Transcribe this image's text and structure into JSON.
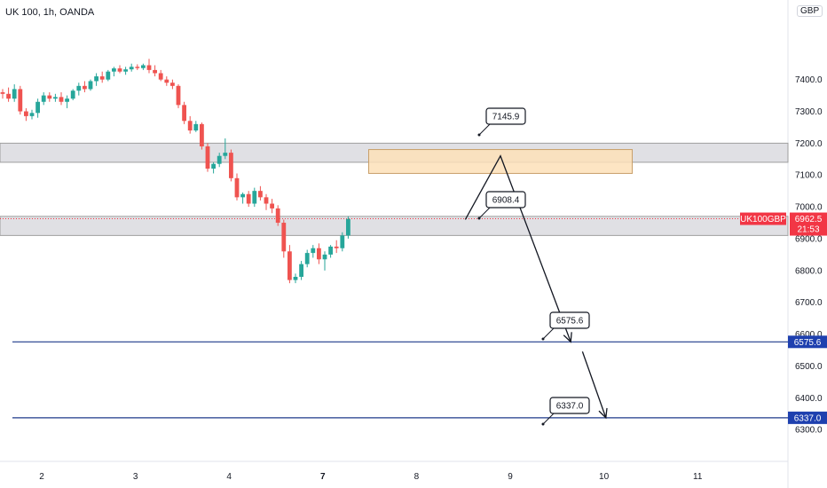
{
  "symbol_line": "UK 100, 1h, OANDA",
  "currency": "GBP",
  "colors": {
    "up": "#26a69a",
    "down": "#ef5350",
    "blue": "#1e3a8a",
    "zone": "#e0e0e4",
    "orange": "#fde0b8",
    "badge_red": "#f23645",
    "badge_blue": "#1e40af"
  },
  "chart_data": {
    "type": "candlestick",
    "title": "UK 100, 1h, OANDA",
    "y_range": [
      6200,
      7650
    ],
    "y_ticks": [
      "7400.0",
      "7300.0",
      "7200.0",
      "7100.0",
      "7000.0",
      "6900.0",
      "6800.0",
      "6700.0",
      "6600.0",
      "6500.0",
      "6400.0",
      "6300.0"
    ],
    "y_tick_values": [
      7400,
      7300,
      7200,
      7100,
      7000,
      6900,
      6800,
      6700,
      6600,
      6500,
      6400,
      6300
    ],
    "x_ticks": [
      "2",
      "3",
      "4",
      "7",
      "8",
      "9",
      "10",
      "11"
    ],
    "x_tick_index": [
      0,
      16,
      32,
      48,
      64,
      80,
      96,
      112
    ],
    "candles": [
      [
        7360,
        7370,
        7340,
        7355
      ],
      [
        7355,
        7375,
        7330,
        7340
      ],
      [
        7340,
        7385,
        7330,
        7370
      ],
      [
        7370,
        7380,
        7290,
        7300
      ],
      [
        7300,
        7310,
        7270,
        7285
      ],
      [
        7285,
        7305,
        7275,
        7295
      ],
      [
        7295,
        7340,
        7280,
        7330
      ],
      [
        7330,
        7360,
        7320,
        7350
      ],
      [
        7350,
        7360,
        7330,
        7340
      ],
      [
        7340,
        7355,
        7330,
        7345
      ],
      [
        7345,
        7360,
        7320,
        7330
      ],
      [
        7330,
        7350,
        7310,
        7340
      ],
      [
        7340,
        7370,
        7335,
        7365
      ],
      [
        7365,
        7390,
        7350,
        7380
      ],
      [
        7380,
        7395,
        7360,
        7370
      ],
      [
        7370,
        7400,
        7365,
        7395
      ],
      [
        7395,
        7420,
        7380,
        7410
      ],
      [
        7410,
        7425,
        7390,
        7400
      ],
      [
        7400,
        7430,
        7395,
        7425
      ],
      [
        7425,
        7440,
        7410,
        7435
      ],
      [
        7435,
        7445,
        7420,
        7425
      ],
      [
        7425,
        7440,
        7415,
        7432
      ],
      [
        7432,
        7450,
        7425,
        7440
      ],
      [
        7440,
        7448,
        7430,
        7436
      ],
      [
        7436,
        7450,
        7430,
        7445
      ],
      [
        7445,
        7465,
        7420,
        7430
      ],
      [
        7430,
        7445,
        7410,
        7420
      ],
      [
        7420,
        7430,
        7395,
        7400
      ],
      [
        7400,
        7410,
        7380,
        7390
      ],
      [
        7390,
        7400,
        7370,
        7380
      ],
      [
        7380,
        7385,
        7310,
        7320
      ],
      [
        7320,
        7330,
        7260,
        7270
      ],
      [
        7270,
        7285,
        7230,
        7240
      ],
      [
        7240,
        7270,
        7235,
        7260
      ],
      [
        7260,
        7265,
        7180,
        7190
      ],
      [
        7190,
        7200,
        7110,
        7120
      ],
      [
        7120,
        7140,
        7105,
        7135
      ],
      [
        7135,
        7170,
        7125,
        7160
      ],
      [
        7160,
        7215,
        7150,
        7170
      ],
      [
        7170,
        7180,
        7080,
        7090
      ],
      [
        7090,
        7105,
        7020,
        7030
      ],
      [
        7030,
        7045,
        7010,
        7040
      ],
      [
        7040,
        7050,
        7000,
        7010
      ],
      [
        7010,
        7060,
        7000,
        7050
      ],
      [
        7050,
        7065,
        7020,
        7030
      ],
      [
        7030,
        7040,
        6990,
        7010
      ],
      [
        7010,
        7025,
        6980,
        6995
      ],
      [
        6995,
        7005,
        6940,
        6950
      ],
      [
        6950,
        6960,
        6840,
        6860
      ],
      [
        6860,
        6880,
        6760,
        6770
      ],
      [
        6770,
        6790,
        6760,
        6780
      ],
      [
        6780,
        6830,
        6770,
        6820
      ],
      [
        6820,
        6865,
        6810,
        6855
      ],
      [
        6855,
        6880,
        6840,
        6870
      ],
      [
        6870,
        6885,
        6820,
        6835
      ],
      [
        6835,
        6860,
        6800,
        6850
      ],
      [
        6850,
        6880,
        6840,
        6875
      ],
      [
        6875,
        6895,
        6855,
        6870
      ],
      [
        6870,
        6920,
        6860,
        6910
      ],
      [
        6910,
        6970,
        6900,
        6962
      ]
    ],
    "zones": [
      {
        "from": 7140,
        "to": 7200,
        "label": "7145.9",
        "anchor": 7145.9
      },
      {
        "from": 6910,
        "to": 6970,
        "label": "6908.4",
        "anchor": 6908.4
      }
    ],
    "orange_zone": {
      "from": 7105,
      "to": 7180,
      "x_from": 62.5,
      "x_to": 107.5
    },
    "levels": [
      {
        "value": 6575.6,
        "label": "6575.6",
        "badge": "6575.6"
      },
      {
        "value": 6337.0,
        "label": "6337.0",
        "badge": "6337.0"
      }
    ],
    "current": {
      "label": "UK100GBP",
      "price": "6962.5",
      "countdown": "21:53",
      "value": 6962.5
    },
    "projection": [
      {
        "i": 79,
        "v": 6960
      },
      {
        "i": 85,
        "v": 7160
      },
      {
        "i": 97,
        "v": 6575.6
      }
    ],
    "projection2": [
      {
        "i": 99,
        "v": 6545
      },
      {
        "i": 103,
        "v": 6337
      }
    ],
    "grid": false
  }
}
